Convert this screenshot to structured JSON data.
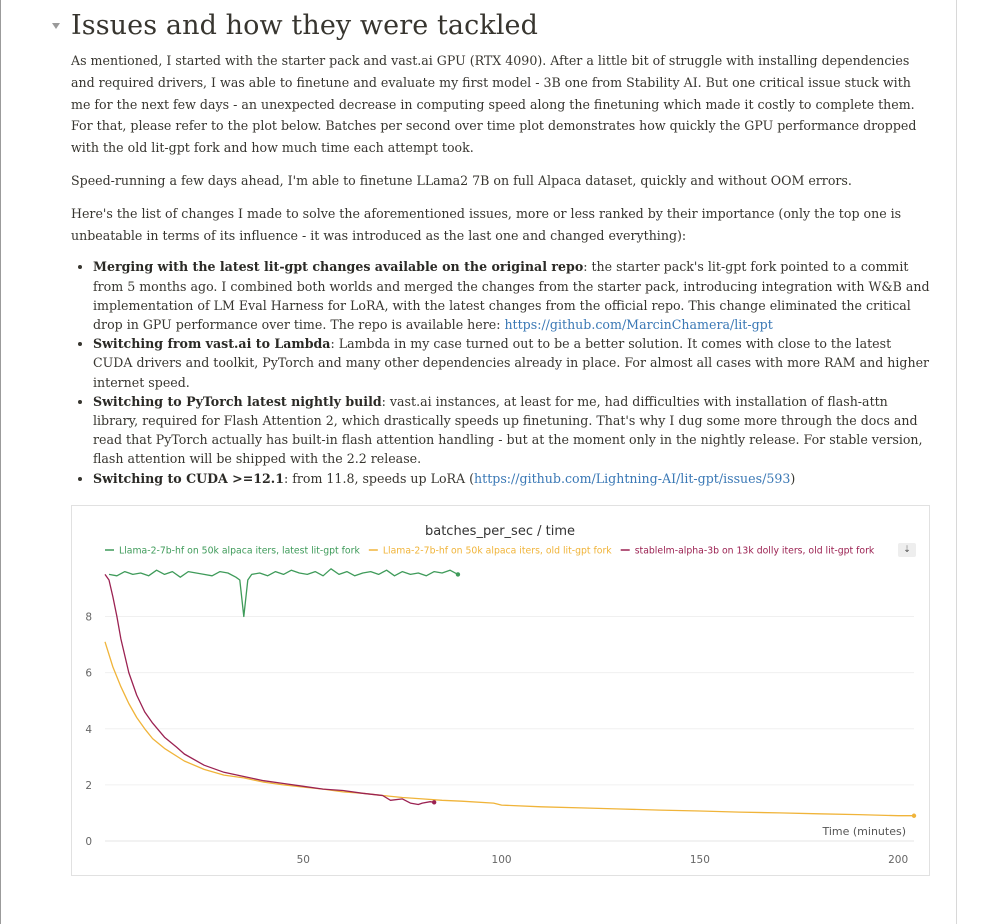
{
  "heading": "Issues and how they were tackled",
  "paragraphs": [
    "As mentioned, I started with the starter pack and vast.ai GPU (RTX 4090). After a little bit of struggle with installing dependencies and required drivers, I was able to finetune and evaluate my first model - 3B one from Stability AI.  But one critical issue stuck with me for the next few days - an unexpected decrease in computing speed along the finetuning which made it costly to complete them. For that, please refer to the plot below. Batches per second over time plot demonstrates how quickly the GPU performance dropped with the old lit-gpt fork and how much time each attempt took.",
    "Speed-running a few days ahead, I'm able to finetune LLama2 7B on full Alpaca dataset, quickly and without OOM errors.",
    "Here's the list of changes I made to solve the aforementioned issues, more or less ranked by their importance (only the top one is unbeatable in terms of its influence - it was introduced as the last one and changed everything):"
  ],
  "changes": [
    {
      "title": "Merging with the latest lit-gpt changes available on the original repo",
      "text": ": the starter pack's lit-gpt fork pointed to a commit from 5 months ago. I combined both worlds and merged the changes from the starter pack, introducing integration with W&B and implementation of LM Eval Harness for LoRA, with the latest changes from the official repo. This change eliminated the critical drop in GPU performance over time. The repo is available here: ",
      "link": "https://github.com/MarcinChamera/lit-gpt",
      "after": ""
    },
    {
      "title": "Switching from vast.ai to Lambda",
      "text": ": Lambda in my case turned out to be a better solution. It comes with close to the latest CUDA drivers and toolkit, PyTorch and many other dependencies already in place. For almost all cases with more RAM and higher internet speed.",
      "link": "",
      "after": ""
    },
    {
      "title": "Switching to PyTorch latest nightly build",
      "text": ": vast.ai instances, at least for me, had difficulties with installation of flash-attn library, required for Flash Attention 2, which drastically speeds up finetuning. That's why I dug some more through the docs and read that PyTorch actually has built-in flash attention handling - but at the moment only in the nightly release. For stable version, flash attention will be shipped with the 2.2 release.",
      "link": "",
      "after": ""
    },
    {
      "title": "Switching to CUDA >=12.1",
      "text": ": from 11.8, speeds up LoRA (",
      "link": "https://github.com/Lightning-AI/lit-gpt/issues/593",
      "after": ")"
    }
  ],
  "chart_data": {
    "type": "line",
    "title": "batches_per_sec / time",
    "xlabel": "Time (minutes)",
    "ylabel": "",
    "xlim": [
      0,
      204
    ],
    "ylim": [
      0,
      9.8
    ],
    "xticks": [
      50,
      100,
      150,
      200
    ],
    "yticks": [
      0,
      2,
      4,
      6,
      8
    ],
    "grid": "horizontal",
    "legend_position": "top",
    "series": [
      {
        "name": "Llama-2-7b-hf on 50k alpaca iters, latest lit-gpt fork",
        "color": "#3f9b5a",
        "x": [
          1,
          3,
          5,
          7,
          9,
          11,
          13,
          15,
          17,
          19,
          21,
          23,
          25,
          27,
          29,
          31,
          33,
          34,
          35,
          36,
          37,
          39,
          41,
          43,
          45,
          47,
          49,
          51,
          53,
          55,
          57,
          59,
          61,
          63,
          65,
          67,
          69,
          71,
          73,
          75,
          77,
          79,
          81,
          83,
          85,
          87,
          89
        ],
        "y": [
          9.5,
          9.45,
          9.6,
          9.5,
          9.55,
          9.45,
          9.65,
          9.5,
          9.6,
          9.4,
          9.6,
          9.55,
          9.5,
          9.45,
          9.6,
          9.55,
          9.4,
          9.3,
          8.0,
          9.3,
          9.5,
          9.55,
          9.45,
          9.6,
          9.5,
          9.65,
          9.55,
          9.5,
          9.6,
          9.45,
          9.7,
          9.5,
          9.6,
          9.45,
          9.55,
          9.6,
          9.5,
          9.65,
          9.45,
          9.6,
          9.5,
          9.55,
          9.45,
          9.6,
          9.55,
          9.65,
          9.5
        ]
      },
      {
        "name": "Llama-2-7b-hf on 50k alpaca iters, old lit-gpt fork",
        "color": "#f0b43a",
        "x": [
          0,
          2,
          4,
          6,
          8,
          10,
          12,
          15,
          20,
          25,
          30,
          35,
          40,
          45,
          50,
          55,
          60,
          65,
          70,
          75,
          80,
          85,
          90,
          98,
          100,
          110,
          120,
          130,
          140,
          150,
          160,
          170,
          180,
          190,
          200,
          204
        ],
        "y": [
          7.1,
          6.2,
          5.5,
          4.9,
          4.4,
          4.0,
          3.65,
          3.3,
          2.85,
          2.55,
          2.35,
          2.25,
          2.1,
          2.0,
          1.92,
          1.85,
          1.75,
          1.7,
          1.62,
          1.55,
          1.5,
          1.45,
          1.42,
          1.35,
          1.28,
          1.22,
          1.18,
          1.14,
          1.1,
          1.07,
          1.03,
          1.0,
          0.97,
          0.94,
          0.9,
          0.9
        ]
      },
      {
        "name": "stablelm-alpha-3b on 13k dolly iters, old lit-gpt fork",
        "color": "#9b2252",
        "x": [
          0,
          1,
          2,
          3,
          4,
          6,
          8,
          10,
          12,
          15,
          18,
          20,
          25,
          30,
          35,
          40,
          45,
          50,
          55,
          60,
          65,
          70,
          72,
          75,
          77,
          79,
          80,
          82,
          83
        ],
        "y": [
          9.5,
          9.3,
          8.7,
          8.0,
          7.2,
          6.0,
          5.2,
          4.6,
          4.2,
          3.7,
          3.35,
          3.1,
          2.7,
          2.45,
          2.3,
          2.15,
          2.05,
          1.95,
          1.85,
          1.8,
          1.7,
          1.62,
          1.45,
          1.5,
          1.35,
          1.3,
          1.35,
          1.4,
          1.38
        ]
      }
    ]
  },
  "legend_menu_icon": "chevron-down-icon"
}
